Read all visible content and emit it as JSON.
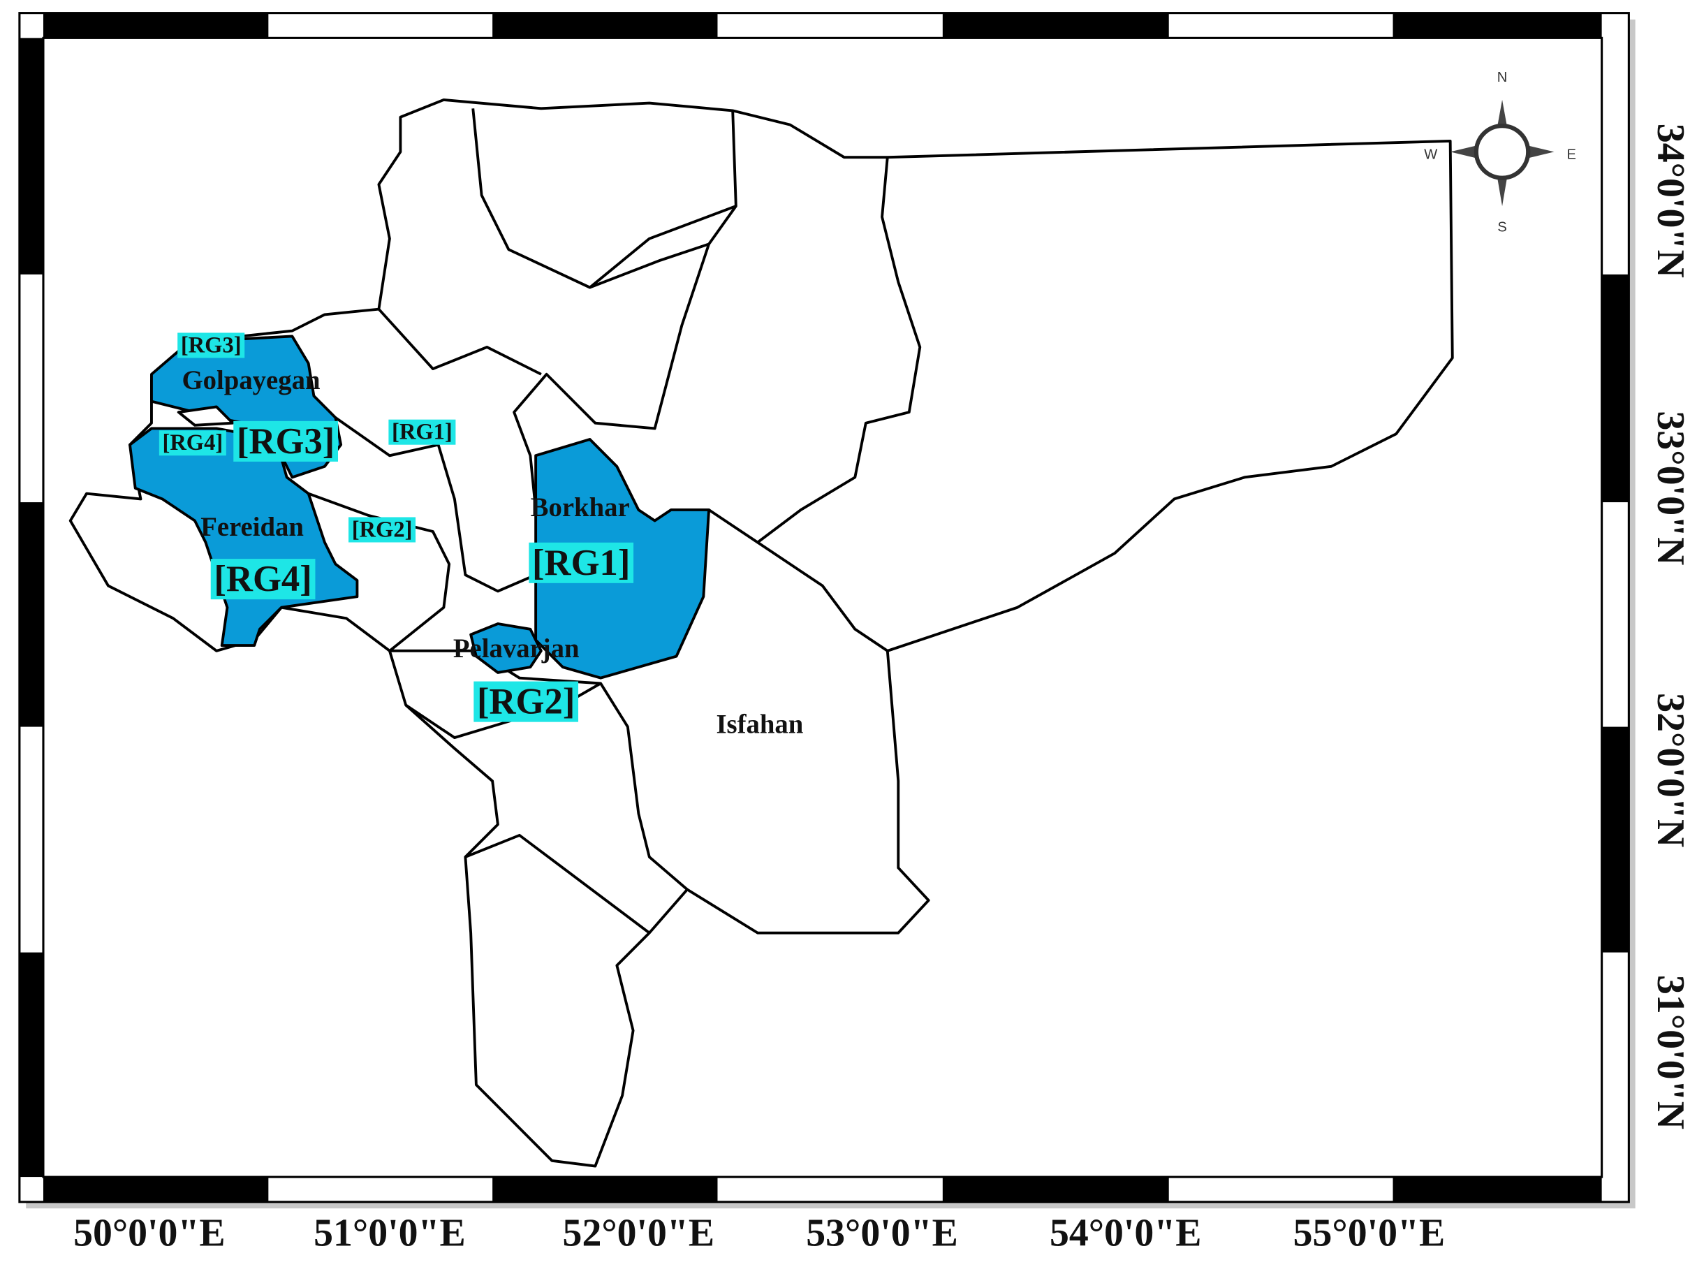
{
  "map": {
    "districts": [
      "Golpayegan",
      "Fereidan",
      "Borkhar",
      "Pelavarjan",
      "Isfahan"
    ],
    "tags": [
      "[RG3]",
      "[RG4]",
      "[RG3]",
      "[RG1]",
      "[RG2]",
      "[RG1]",
      "[RG4]",
      "[RG2]"
    ],
    "longitude_labels": [
      "50°0'0\"E",
      "51°0'0\"E",
      "52°0'0\"E",
      "53°0'0\"E",
      "54°0'0\"E",
      "55°0'0\"E"
    ],
    "latitude_labels": [
      "34°0'0\"N",
      "33°0'0\"N",
      "32°0'0\"N",
      "31°0'0\"N"
    ],
    "compass": {
      "north": "N",
      "east": "E",
      "south": "S",
      "west": "W"
    }
  }
}
